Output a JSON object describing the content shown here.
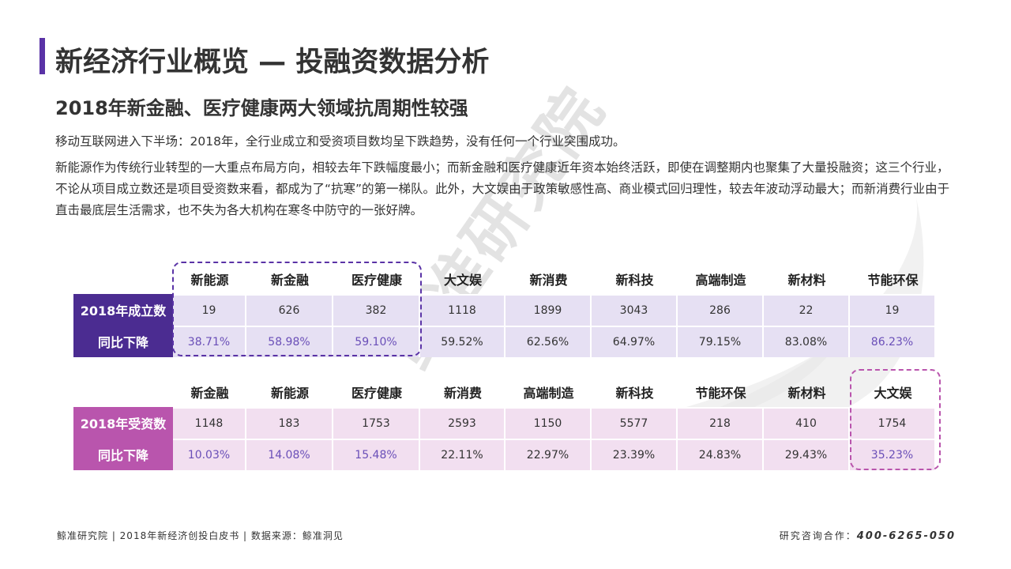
{
  "watermark": "鲸准研究院",
  "title": "新经济行业概览 — 投融资数据分析",
  "subtitle": "2018年新金融、医疗健康两大领域抗周期性较强",
  "paragraphs": [
    "移动互联网进入下半场：2018年，全行业成立和受资项目数均呈下跌趋势，没有任何一个行业突围成功。",
    "新能源作为传统行业转型的一大重点布局方向，相较去年下跌幅度最小；而新金融和医疗健康近年资本始终活跃，即使在调整期内也聚集了大量投融资；这三个行业，不论从项目成立数还是项目受资数来看，都成为了“抗寒”的第一梯队。此外，大文娱由于政策敏感性高、商业模式回归理性，较去年波动浮动最大；而新消费行业由于直击最底层生活需求，也不失为各大机构在寒冬中防守的一张好牌。"
  ],
  "table1": {
    "headers": [
      "新能源",
      "新金融",
      "医疗健康",
      "大文娱",
      "新消费",
      "新科技",
      "高端制造",
      "新材料",
      "节能环保"
    ],
    "row1_label": "2018年成立数",
    "row1": [
      "19",
      "626",
      "382",
      "1118",
      "1899",
      "3043",
      "286",
      "22",
      "19"
    ],
    "row2_label": "同比下降",
    "row2": [
      "38.71%",
      "58.98%",
      "59.10%",
      "59.52%",
      "62.56%",
      "64.97%",
      "79.15%",
      "83.08%",
      "86.23%"
    ]
  },
  "table2": {
    "headers": [
      "新金融",
      "新能源",
      "医疗健康",
      "新消费",
      "高端制造",
      "新科技",
      "节能环保",
      "新材料",
      "大文娱"
    ],
    "row1_label": "2018年受资数",
    "row1": [
      "1148",
      "183",
      "1753",
      "2593",
      "1150",
      "5577",
      "218",
      "410",
      "1754"
    ],
    "row2_label": "同比下降",
    "row2": [
      "10.03%",
      "14.08%",
      "15.48%",
      "22.11%",
      "22.97%",
      "23.39%",
      "24.83%",
      "29.43%",
      "35.23%"
    ]
  },
  "footer": {
    "left": "鲸准研究院 | 2018年新经济创投白皮书 | 数据来源：鲸准洞见",
    "right_label": "研究咨询合作：",
    "right_phone": "400-6265-050"
  },
  "colors": {
    "accent": "#5a33a6",
    "table1_label_bg": "#4b2c91",
    "table2_label_bg": "#b955ad",
    "table1_cell_bg": "#e6e0f3",
    "table2_cell_bg": "#f2dff0",
    "highlight_text": "#6a4fb8"
  }
}
